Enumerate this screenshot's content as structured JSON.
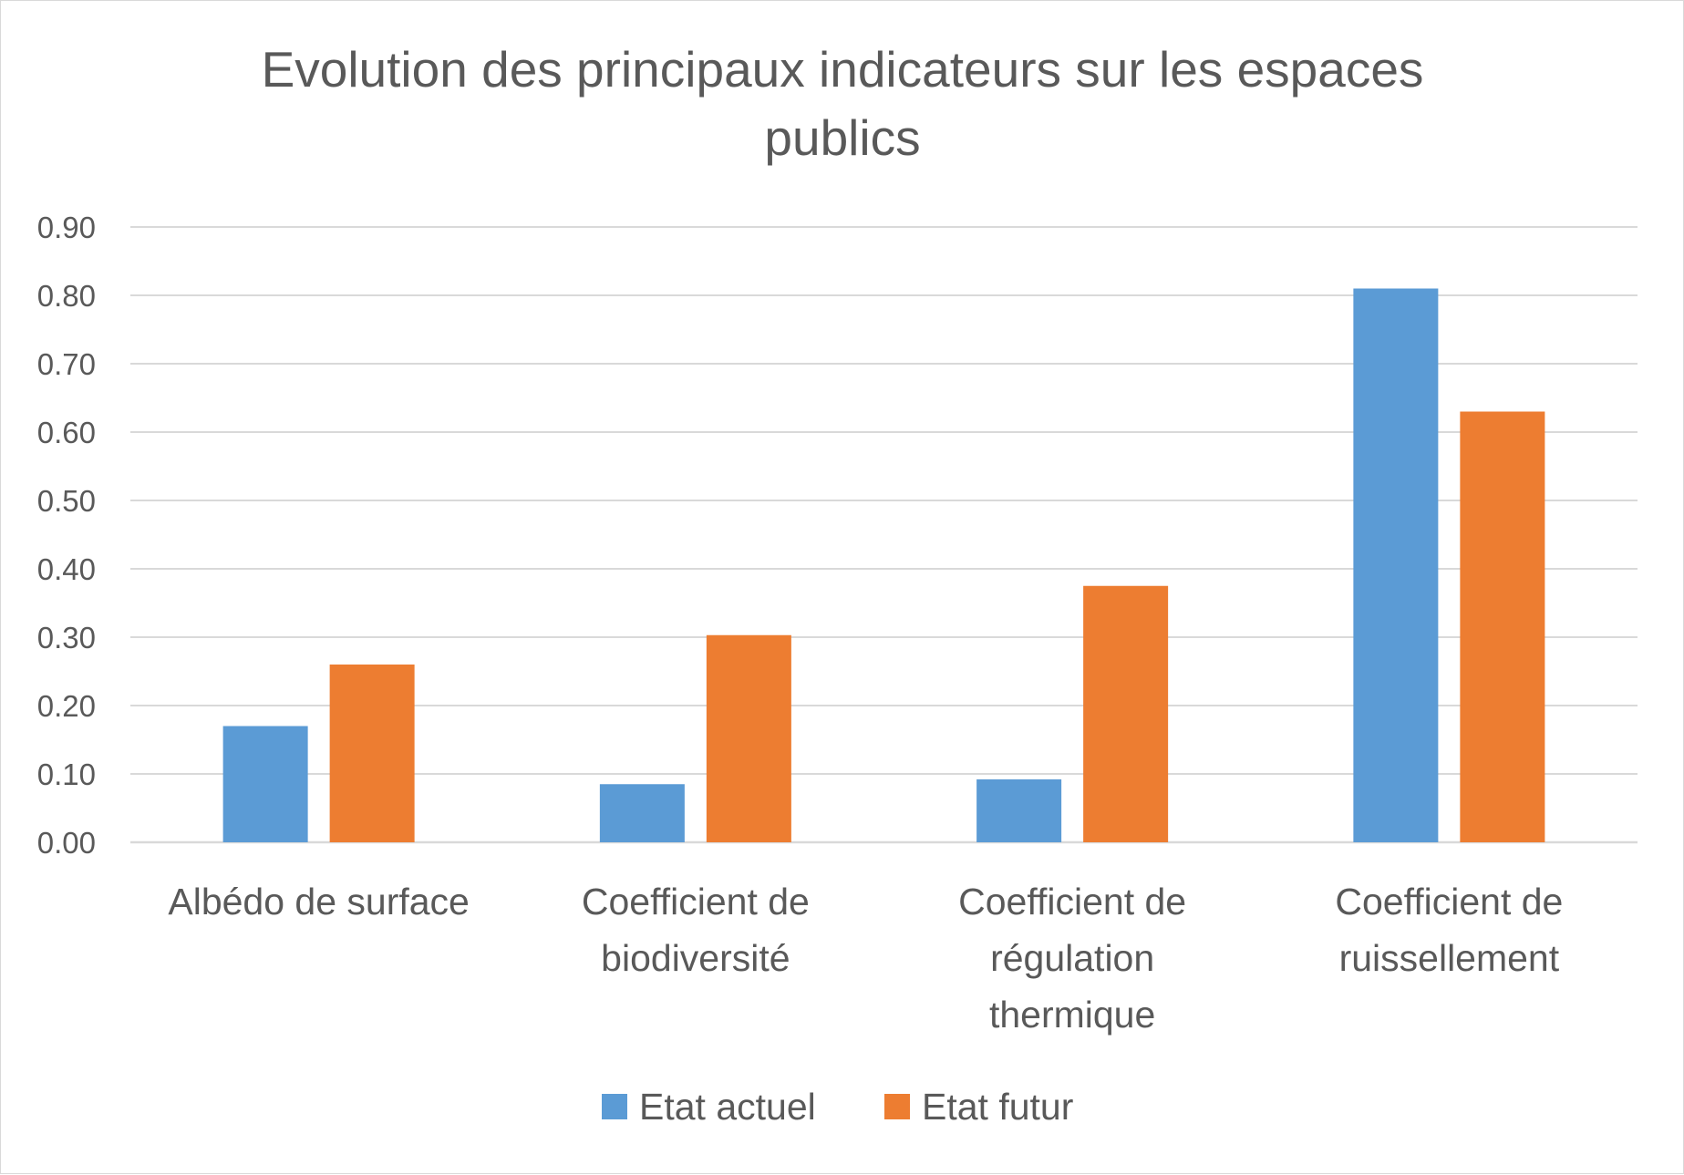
{
  "chart_data": {
    "type": "bar",
    "title": "Evolution des principaux indicateurs sur les espaces publics",
    "title_lines": [
      "Evolution des principaux indicateurs sur les espaces",
      "publics"
    ],
    "categories": [
      [
        "Albédo de surface"
      ],
      [
        "Coefficient de",
        "biodiversité"
      ],
      [
        "Coefficient de",
        "régulation",
        "thermique"
      ],
      [
        "Coefficient de",
        "ruissellement"
      ]
    ],
    "series": [
      {
        "name": "Etat actuel",
        "color": "#5b9bd5",
        "values": [
          0.17,
          0.085,
          0.092,
          0.81
        ]
      },
      {
        "name": "Etat futur",
        "color": "#ed7d31",
        "values": [
          0.26,
          0.303,
          0.375,
          0.63
        ]
      }
    ],
    "ylim": [
      0,
      0.9
    ],
    "yticks": [
      "0.00",
      "0.10",
      "0.20",
      "0.30",
      "0.40",
      "0.50",
      "0.60",
      "0.70",
      "0.80",
      "0.90"
    ],
    "xlabel": "",
    "ylabel": "",
    "grid": true,
    "legend": "bottom"
  }
}
